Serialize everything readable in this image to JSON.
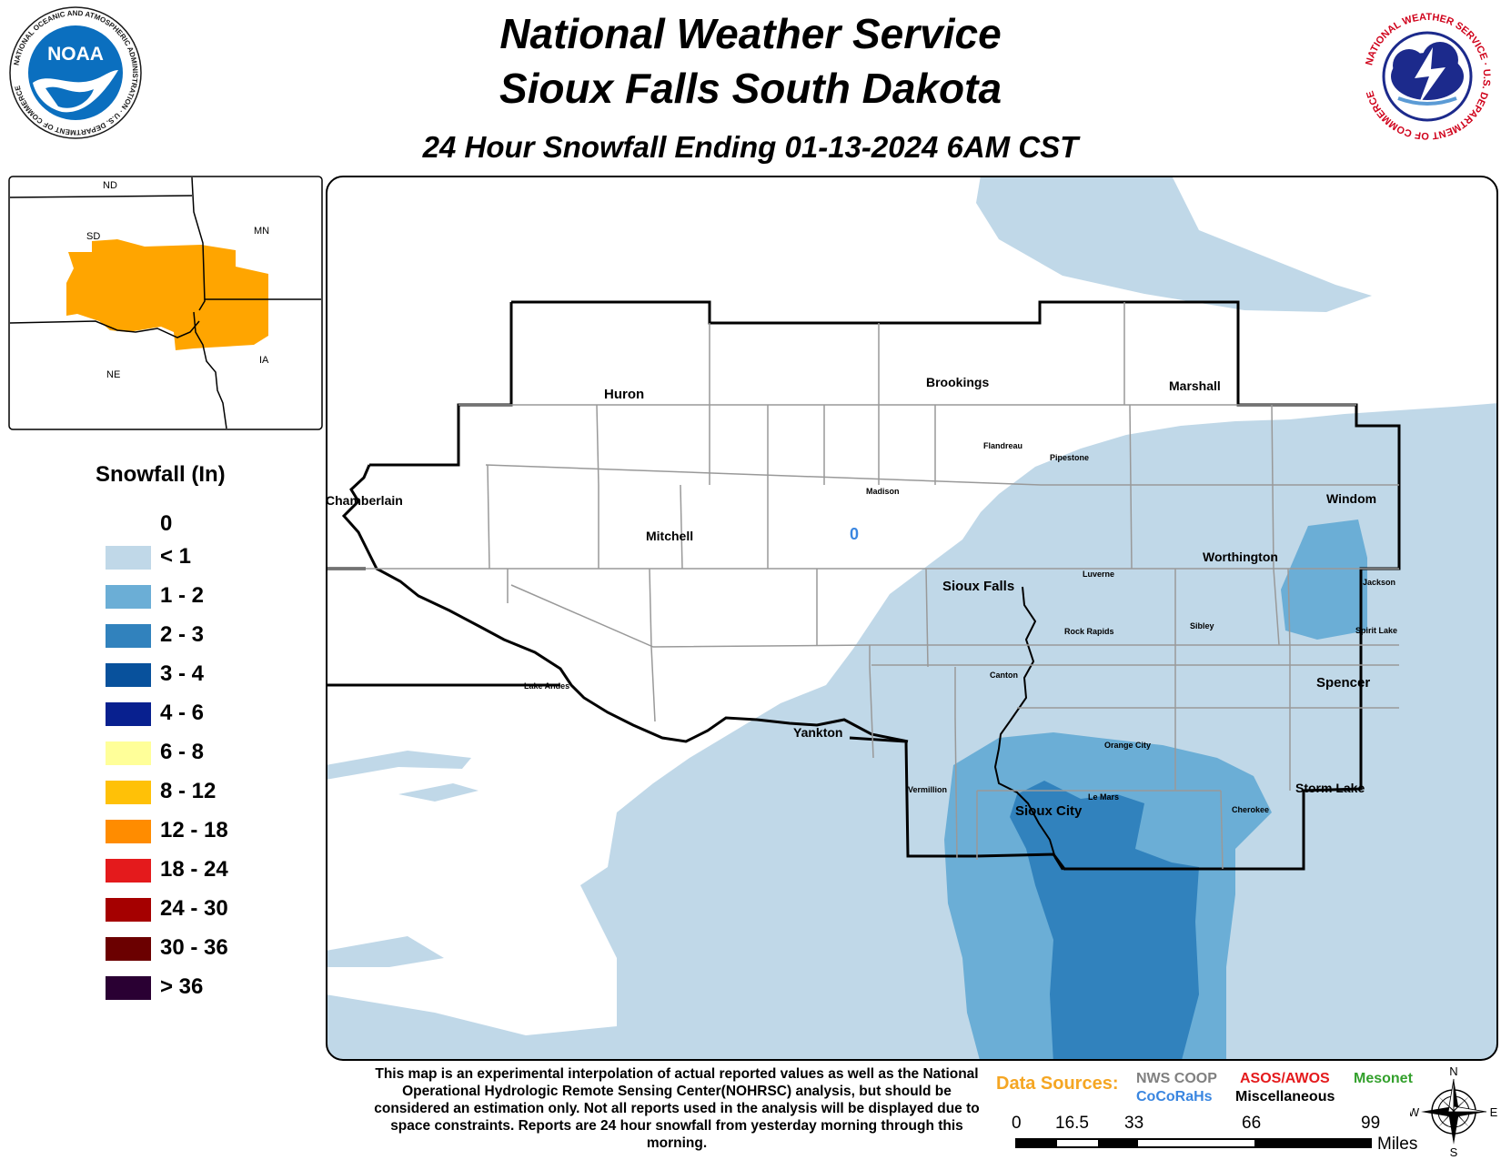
{
  "header": {
    "title_line1": "National Weather Service",
    "title_line2": "Sioux Falls South Dakota",
    "subtitle": "24 Hour Snowfall Ending 01-13-2024 6AM CST"
  },
  "logos": {
    "left": {
      "name": "noaa-logo",
      "center_text": "NOAA",
      "ring_text": "NATIONAL OCEANIC AND ATMOSPHERIC ADMINISTRATION · U.S. DEPARTMENT OF COMMERCE"
    },
    "right": {
      "name": "nws-logo",
      "ring_text": "NATIONAL WEATHER SERVICE · U.S. DEPARTMENT OF COMMERCE"
    }
  },
  "inset_map": {
    "state_labels": [
      "ND",
      "SD",
      "MN",
      "NE",
      "IA"
    ],
    "highlight_color": "#FFA500"
  },
  "legend": {
    "title": "Snowfall (In)",
    "zero_label": "0",
    "items": [
      {
        "label": "< 1",
        "color": "#C0D8E8"
      },
      {
        "label": "1 - 2",
        "color": "#6BAED6"
      },
      {
        "label": "2 - 3",
        "color": "#3182BD"
      },
      {
        "label": "3 - 4",
        "color": "#08519C"
      },
      {
        "label": "4 - 6",
        "color": "#08208F"
      },
      {
        "label": "6 - 8",
        "color": "#FFFF99"
      },
      {
        "label": "8 - 12",
        "color": "#FFC107"
      },
      {
        "label": "12 - 18",
        "color": "#FF8C00"
      },
      {
        "label": "18 - 24",
        "color": "#E41A1C"
      },
      {
        "label": "24 - 30",
        "color": "#A50000"
      },
      {
        "label": "30 - 36",
        "color": "#6B0000"
      },
      {
        "label": "> 36",
        "color": "#2A0033"
      }
    ]
  },
  "map": {
    "cities_major": [
      "Huron",
      "Brookings",
      "Marshall",
      "Chamberlain",
      "Mitchell",
      "Windom",
      "Worthington",
      "Sioux Falls",
      "Spencer",
      "Yankton",
      "Storm Lake",
      "Sioux City"
    ],
    "cities_minor": [
      "Flandreau",
      "Pipestone",
      "Madison",
      "Luverne",
      "Jackson",
      "Rock Rapids",
      "Sibley",
      "Spirit Lake",
      "Canton",
      "Lake Andes",
      "Orange City",
      "Vermillion",
      "Le Mars",
      "Cherokee"
    ],
    "report_value": "0"
  },
  "footer": {
    "disclaimer": "This map is an experimental interpolation of actual reported values as well as the National Operational Hydrologic Remote Sensing Center(NOHRSC) analysis, but should be considered an estimation only. Not all reports used in the analysis will be displayed due to space constraints. Reports are 24 hour snowfall from yesterday morning through this morning.",
    "data_sources_label": "Data Sources:",
    "sources": [
      {
        "label": "NWS COOP",
        "color": "#808080"
      },
      {
        "label": "ASOS/AWOS",
        "color": "#E41A1C"
      },
      {
        "label": "Mesonet",
        "color": "#33A02C"
      },
      {
        "label": "CoCoRaHs",
        "color": "#3A86E0"
      },
      {
        "label": "Miscellaneous",
        "color": "#000000"
      }
    ],
    "scale": {
      "ticks": [
        "0",
        "16.5",
        "33",
        "66",
        "99"
      ],
      "unit": "Miles"
    },
    "compass": {
      "n": "N",
      "s": "S",
      "e": "E",
      "w": "W"
    }
  }
}
